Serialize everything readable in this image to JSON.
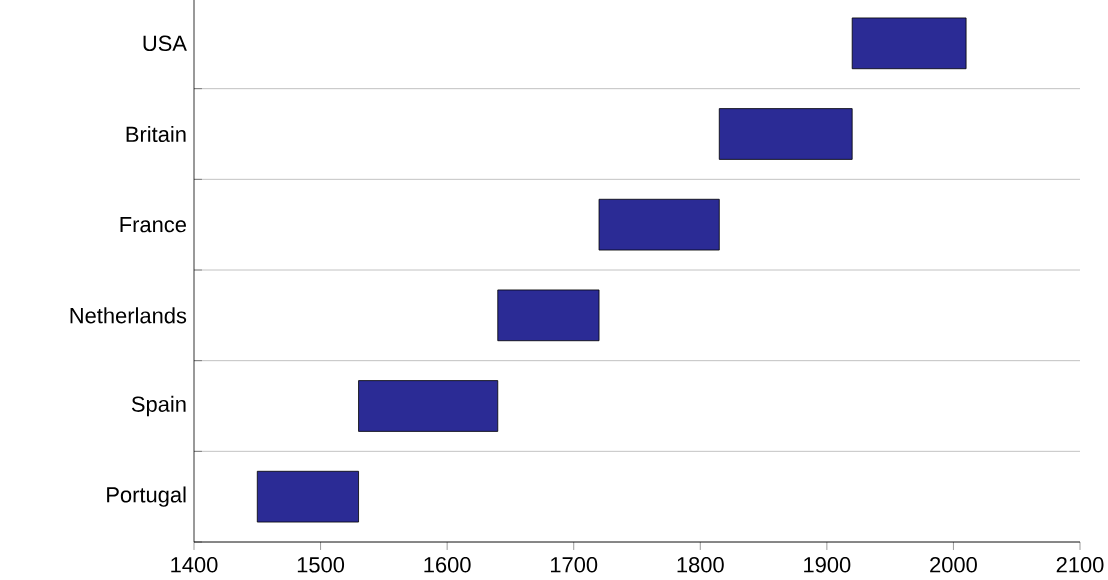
{
  "chart_data": {
    "type": "bar",
    "orientation": "horizontal",
    "categories": [
      "USA",
      "Britain",
      "France",
      "Netherlands",
      "Spain",
      "Portugal"
    ],
    "base": [
      1920,
      1815,
      1720,
      1640,
      1530,
      1450
    ],
    "values": [
      90,
      105,
      95,
      80,
      110,
      80
    ],
    "color": "#2b2b95",
    "xlim": [
      1400,
      2100
    ],
    "xticks": [
      1400,
      1500,
      1600,
      1700,
      1800,
      1900,
      2000,
      2100
    ],
    "grid": "y"
  }
}
